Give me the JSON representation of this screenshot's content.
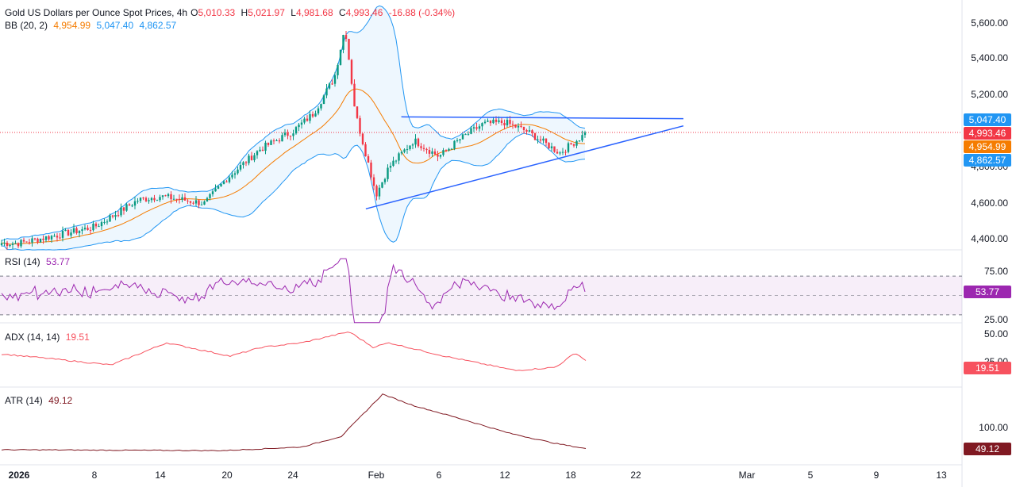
{
  "header": {
    "symbol_title": "Gold US Dollars per Ounce Spot Prices, 4h",
    "o_label": "O",
    "o_value": "5,010.33",
    "h_label": "H",
    "h_value": "5,021.97",
    "l_label": "L",
    "l_value": "4,981.68",
    "c_label": "C",
    "c_value": "4,993.46",
    "change": "-16.88 (-0.34%)"
  },
  "bb_legend": {
    "label": "BB (20, 2)",
    "basis": "4,954.99",
    "upper": "5,047.40",
    "lower": "4,862.57"
  },
  "rsi_legend": {
    "label": "RSI (14)",
    "value": "53.77"
  },
  "adx_legend": {
    "label": "ADX (14, 14)",
    "value": "19.51"
  },
  "atr_legend": {
    "label": "ATR (14)",
    "value": "49.12"
  },
  "price_axis": [
    "5,600.00",
    "5,400.00",
    "5,200.00",
    "4,800.00",
    "4,600.00",
    "4,400.00"
  ],
  "price_badges": {
    "upper": "5,047.40",
    "last": "4,993.46",
    "basis": "4,954.99",
    "lower": "4,862.57"
  },
  "rsi_axis": [
    "75.00",
    "25.00"
  ],
  "rsi_badge": "53.77",
  "adx_axis": [
    "50.00",
    "25.00"
  ],
  "adx_badge": "19.51",
  "atr_axis": [
    "100.00"
  ],
  "atr_badge": "49.12",
  "time_axis": [
    "2026",
    "8",
    "14",
    "20",
    "24",
    "Feb",
    "6",
    "12",
    "18",
    "22",
    "Mar",
    "5",
    "9",
    "13"
  ],
  "colors": {
    "up": "#089981",
    "down": "#f23645",
    "bb_band": "#2196f3",
    "bb_basis": "#f57c00",
    "rsi": "#9c27b0",
    "adx": "#f7525f",
    "atr": "#801922",
    "trendline": "#2962ff",
    "last_price": "#f23645"
  },
  "chart_data": {
    "type": "line",
    "title": "Gold US Dollars per Ounce Spot Prices, 4h",
    "price_ylim": [
      4350,
      5680
    ],
    "last_price": 4993.46,
    "bollinger": {
      "period": 20,
      "stddev": 2,
      "basis": 4954.99,
      "upper": 5047.4,
      "lower": 4862.57
    },
    "close_path": [
      {
        "x": "2026-01-01",
        "y": 4380
      },
      {
        "x": "2026-01-05",
        "y": 4430
      },
      {
        "x": "2026-01-08",
        "y": 4470
      },
      {
        "x": "2026-01-12",
        "y": 4620
      },
      {
        "x": "2026-01-14",
        "y": 4640
      },
      {
        "x": "2026-01-18",
        "y": 4600
      },
      {
        "x": "2026-01-20",
        "y": 4740
      },
      {
        "x": "2026-01-22",
        "y": 4900
      },
      {
        "x": "2026-01-24",
        "y": 5000
      },
      {
        "x": "2026-01-26",
        "y": 5100
      },
      {
        "x": "2026-01-28",
        "y": 5300
      },
      {
        "x": "2026-01-29",
        "y": 5580
      },
      {
        "x": "2026-01-30",
        "y": 5100
      },
      {
        "x": "2026-02-01",
        "y": 4650
      },
      {
        "x": "2026-02-02",
        "y": 4800
      },
      {
        "x": "2026-02-04",
        "y": 4950
      },
      {
        "x": "2026-02-06",
        "y": 4860
      },
      {
        "x": "2026-02-08",
        "y": 4960
      },
      {
        "x": "2026-02-10",
        "y": 5040
      },
      {
        "x": "2026-02-12",
        "y": 5050
      },
      {
        "x": "2026-02-14",
        "y": 5000
      },
      {
        "x": "2026-02-17",
        "y": 4880
      },
      {
        "x": "2026-02-19",
        "y": 4993
      }
    ],
    "triangle_upper": [
      {
        "x": "2026-02-03",
        "y": 5080
      },
      {
        "x": "2026-02-25",
        "y": 5070
      }
    ],
    "triangle_lower": [
      {
        "x": "2026-01-31",
        "y": 4570
      },
      {
        "x": "2026-02-25",
        "y": 5030
      }
    ],
    "rsi": {
      "period": 14,
      "last": 53.77,
      "ylim": [
        10,
        95
      ],
      "bands": [
        70,
        50,
        30
      ]
    },
    "adx": {
      "period": 14,
      "last": 19.51,
      "ylim": [
        5,
        55
      ]
    },
    "atr": {
      "period": 14,
      "last": 49.12,
      "ylim": [
        35,
        185
      ]
    }
  }
}
